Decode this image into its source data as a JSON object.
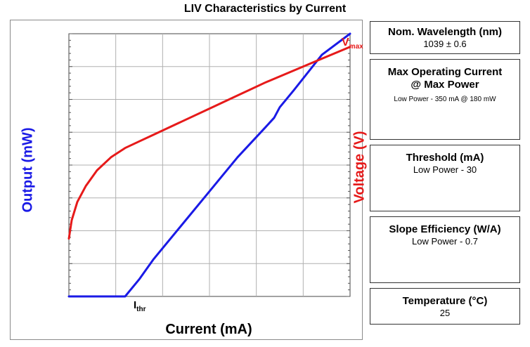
{
  "chart_data": {
    "type": "line",
    "title": "LIV Characteristics by Current",
    "xlabel": "Current (mA)",
    "ylabel": "Output (mW)",
    "y2label": "Voltage (V)",
    "annotations": {
      "threshold_main": "I",
      "threshold_sub": "thr",
      "vmax_main": "V",
      "vmax_sub": "max"
    },
    "xlim": [
      0,
      100
    ],
    "ylim": [
      0,
      100
    ],
    "y2lim": [
      0,
      100
    ],
    "grid": true,
    "series": [
      {
        "name": "Output",
        "color": "#1a1ae6",
        "axis": "left",
        "x": [
          0,
          10,
          20,
          25,
          30,
          40,
          50,
          60,
          70,
          73,
          75,
          80,
          90,
          100
        ],
        "y": [
          0,
          0,
          0,
          6.5,
          14,
          27,
          40,
          53,
          64.5,
          68,
          72,
          78.5,
          92,
          100
        ]
      },
      {
        "name": "Voltage",
        "color": "#e61a1a",
        "axis": "right",
        "x": [
          0,
          1,
          3,
          6,
          10,
          15,
          20,
          25,
          30,
          40,
          50,
          60,
          70,
          80,
          90,
          100
        ],
        "y": [
          22,
          29,
          36,
          42,
          48,
          53,
          56.5,
          59,
          61.5,
          66.5,
          71.5,
          76.5,
          81.5,
          86,
          90.5,
          95
        ]
      }
    ]
  },
  "info_boxes": [
    {
      "heading": "Nom. Wavelength (nm)",
      "value": "1039 ± 0.6"
    },
    {
      "heading_line1": "Max Operating Current",
      "heading_line2": "@ Max Power",
      "value": "Low Power - 350 mA @ 180 mW"
    },
    {
      "heading": "Threshold (mA)",
      "value": "Low Power - 30"
    },
    {
      "heading": "Slope Efficiency (W/A)",
      "value": "Low Power - 0.7"
    },
    {
      "heading": "Temperature (°C)",
      "value": "25"
    }
  ]
}
